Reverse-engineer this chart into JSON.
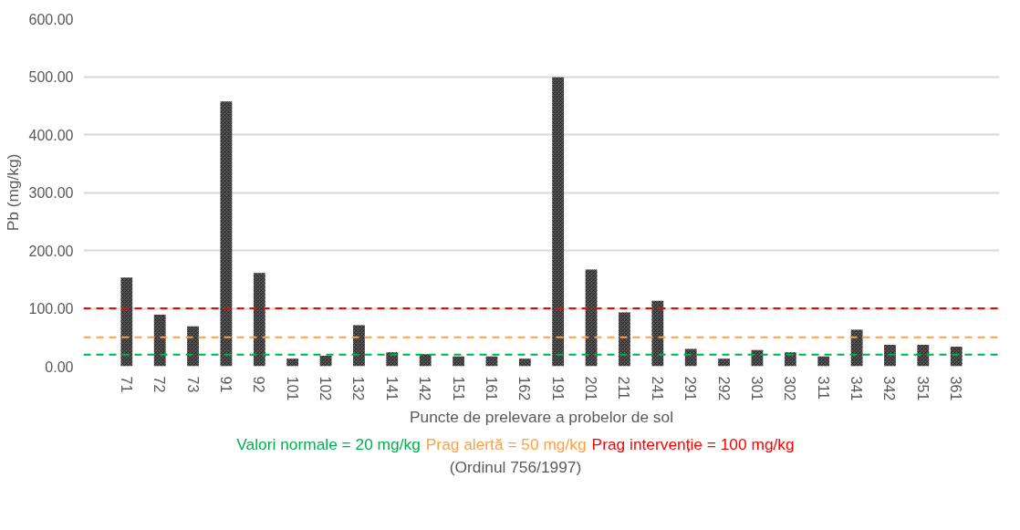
{
  "chart_data": {
    "type": "bar",
    "ylabel": "Pb (mg/kg)",
    "xlabel": "Puncte de prelevare a probelor de sol",
    "categories": [
      "71",
      "72",
      "73",
      "91",
      "92",
      "101",
      "102",
      "132",
      "141",
      "142",
      "151",
      "161",
      "162",
      "191",
      "201",
      "211",
      "241",
      "291",
      "292",
      "301",
      "302",
      "311",
      "341",
      "342",
      "351",
      "361"
    ],
    "values": [
      153,
      89,
      69,
      457,
      161,
      13,
      18,
      71,
      24,
      21,
      17,
      17,
      13,
      499,
      167,
      93,
      113,
      30,
      13,
      28,
      24,
      17,
      63,
      37,
      37,
      34
    ],
    "color": "#595959",
    "ylim": [
      0,
      600
    ],
    "yticks": [
      {
        "value": 0,
        "label": "0.00"
      },
      {
        "value": 100,
        "label": "100.00"
      },
      {
        "value": 200,
        "label": "200.00"
      },
      {
        "value": 300,
        "label": "300.00"
      },
      {
        "value": 400,
        "label": "400.00"
      },
      {
        "value": 500,
        "label": "500.00"
      },
      {
        "value": 600,
        "label": "600.00"
      }
    ],
    "grid": "y",
    "ref_lines": [
      {
        "axis": "y",
        "value": 20,
        "label": "Valori normale = 20 mg/kg",
        "color": "#00b050",
        "line_style": "dashed"
      },
      {
        "axis": "y",
        "value": 50,
        "label": "Prag alertă = 50 mg/kg",
        "color": "#ffa040",
        "line_style": "dashed"
      },
      {
        "axis": "y",
        "value": 100,
        "label": "Prag intervenție = 100 mg/kg",
        "color": "#ff0000",
        "line_style": "dashed"
      }
    ],
    "annotations": [
      "(Ordinul 756/1997)"
    ]
  }
}
